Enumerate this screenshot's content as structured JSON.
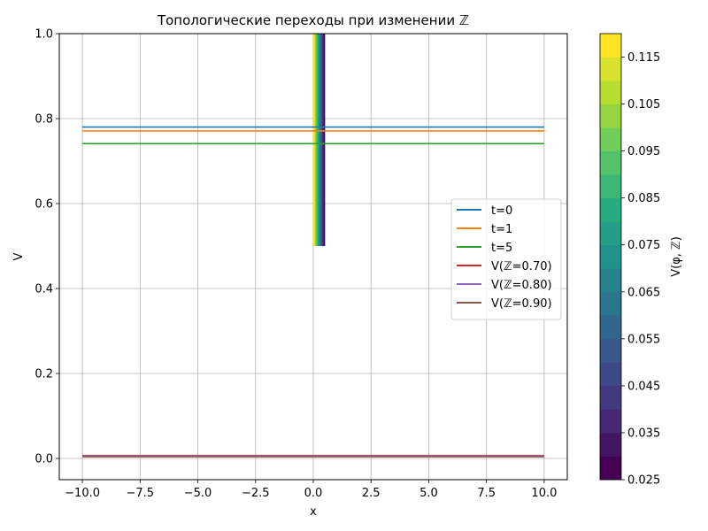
{
  "chart_data": {
    "type": "line",
    "title": "Топологические переходы при изменении ℤ",
    "xlabel": "x",
    "ylabel": "V",
    "xlim": [
      -11,
      11
    ],
    "ylim": [
      -0.05,
      1.0
    ],
    "xticks": [
      -10.0,
      -7.5,
      -5.0,
      -2.5,
      0.0,
      2.5,
      5.0,
      7.5,
      10.0
    ],
    "xtick_labels": [
      "−10.0",
      "−7.5",
      "−5.0",
      "−2.5",
      "0.0",
      "2.5",
      "5.0",
      "7.5",
      "10.0"
    ],
    "yticks": [
      0.0,
      0.2,
      0.4,
      0.6,
      0.8,
      1.0
    ],
    "ytick_labels": [
      "0.0",
      "0.2",
      "0.4",
      "0.6",
      "0.8",
      "1.0"
    ],
    "grid": true,
    "legend_position": "center-right",
    "series": [
      {
        "name": "t=0",
        "color": "#1f77b4",
        "x": [
          -10,
          10
        ],
        "y": [
          0.78,
          0.78
        ]
      },
      {
        "name": "t=1",
        "color": "#ff7f0e",
        "x": [
          -10,
          10
        ],
        "y": [
          0.771,
          0.771
        ]
      },
      {
        "name": "t=5",
        "color": "#2ca02c",
        "x": [
          -10,
          10
        ],
        "y": [
          0.741,
          0.741
        ]
      },
      {
        "name": "V(ℤ=0.70)",
        "color": "#d62728",
        "x": [
          -10,
          10
        ],
        "y": [
          0.007,
          0.007
        ]
      },
      {
        "name": "V(ℤ=0.80)",
        "color": "#9467bd",
        "x": [
          -10,
          10
        ],
        "y": [
          0.006,
          0.006
        ]
      },
      {
        "name": "V(ℤ=0.90)",
        "color": "#8c564b",
        "x": [
          -10,
          10
        ],
        "y": [
          0.004,
          0.004
        ]
      }
    ],
    "contour": {
      "x_range": [
        0.0,
        0.5
      ],
      "y_range": [
        0.5,
        1.0
      ],
      "colormap": "viridis",
      "colors": [
        "#440154",
        "#472d7b",
        "#3b528b",
        "#2c728e",
        "#21918c",
        "#28ae80",
        "#5ec962",
        "#addc30",
        "#fde725"
      ]
    },
    "colorbar": {
      "label": "V(φ, ℤ)",
      "min": 0.025,
      "max": 0.12,
      "levels": 19,
      "ticks": [
        0.025,
        0.035,
        0.045,
        0.055,
        0.065,
        0.075,
        0.085,
        0.095,
        0.105,
        0.115
      ],
      "tick_labels": [
        "0.025",
        "0.035",
        "0.045",
        "0.055",
        "0.065",
        "0.075",
        "0.085",
        "0.095",
        "0.105",
        "0.115"
      ]
    }
  }
}
